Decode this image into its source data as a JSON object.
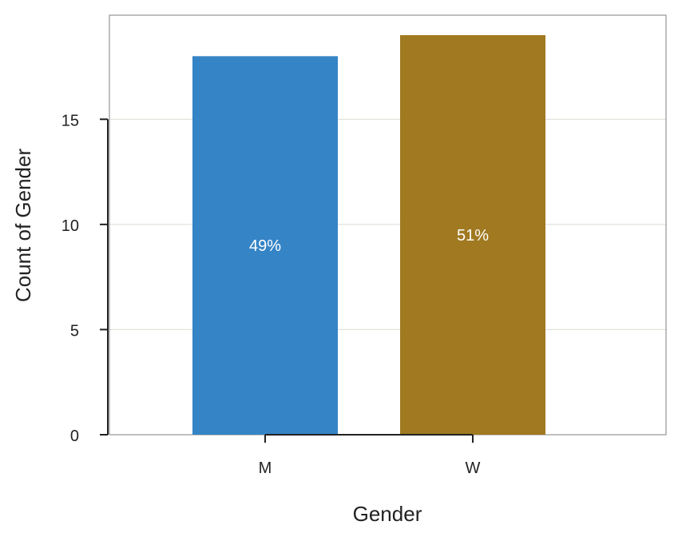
{
  "chart_data": {
    "type": "bar",
    "categories": [
      "M",
      "W"
    ],
    "values": [
      18,
      19
    ],
    "bar_labels": [
      "49%",
      "51%"
    ],
    "colors": [
      "#3584c6",
      "#a07921"
    ],
    "xlabel": "Gender",
    "ylabel": "Count of Gender",
    "ylim": [
      0,
      19.95
    ],
    "yticks": [
      0,
      5,
      10,
      15
    ],
    "ytick_labels": [
      "0",
      "5",
      "10",
      "15"
    ],
    "grid": "horizontal",
    "legend": "none"
  }
}
